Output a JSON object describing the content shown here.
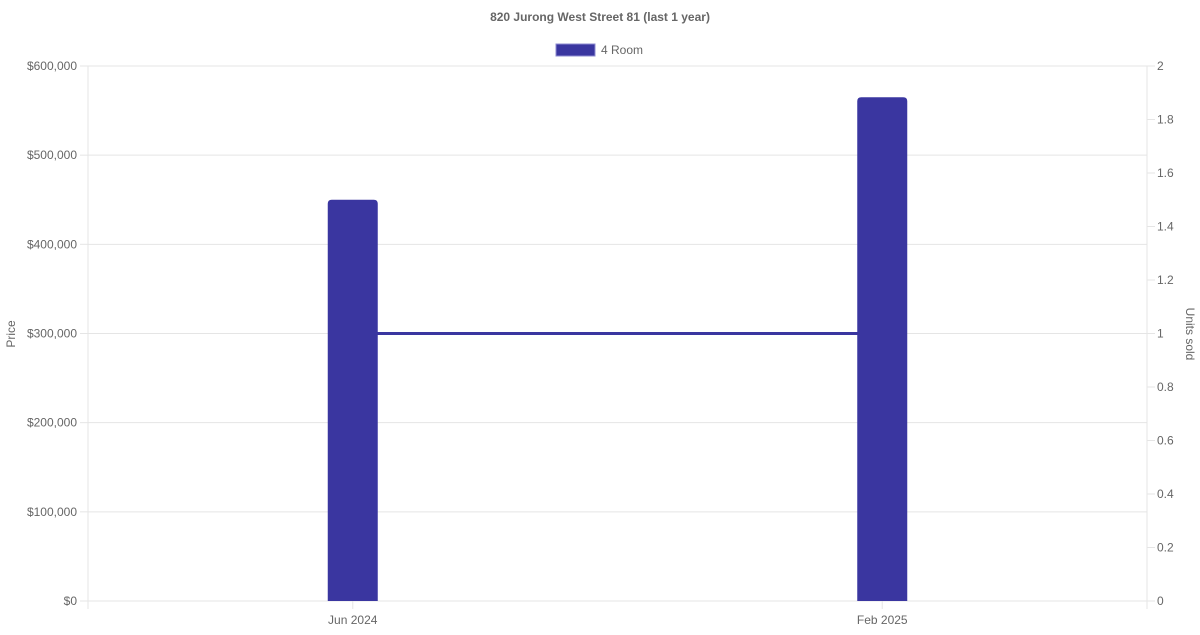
{
  "chart_data": {
    "type": "bar",
    "title": "820 Jurong West Street 81 (last 1 year)",
    "categories": [
      "Jun 2024",
      "Feb 2025"
    ],
    "series": [
      {
        "name": "4 Room",
        "kind": "bar",
        "axis": "left",
        "values": [
          450000,
          565000
        ],
        "color": "#3a36a0"
      },
      {
        "kind": "line",
        "axis": "right",
        "values": [
          1,
          1
        ],
        "color": "#3a36a0"
      }
    ],
    "ylabel": "Price",
    "y2label": "Units sold",
    "ylim": [
      0,
      600000
    ],
    "y2lim": [
      0,
      2
    ],
    "yticks": [
      "$0",
      "$100,000",
      "$200,000",
      "$300,000",
      "$400,000",
      "$500,000",
      "$600,000"
    ],
    "y2ticks": [
      "0",
      "0.2",
      "0.4",
      "0.6",
      "0.8",
      "1",
      "1.2",
      "1.4",
      "1.6",
      "1.8",
      "2"
    ],
    "legend": "top",
    "grid": true
  }
}
